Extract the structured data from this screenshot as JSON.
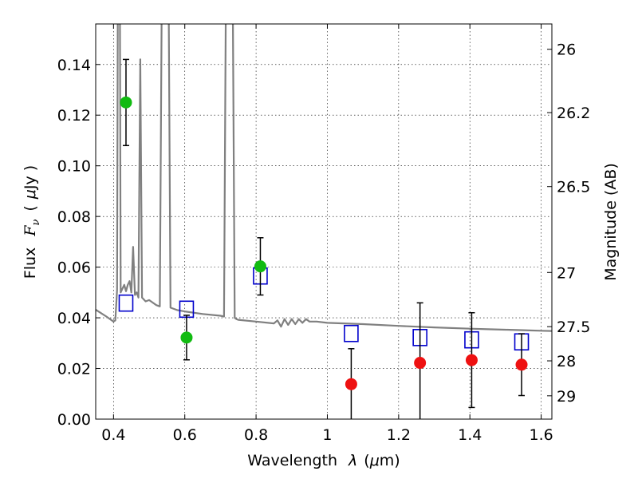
{
  "chart_data": {
    "type": "scatter",
    "xlabel_prefix": "Wavelength",
    "xlabel_lambda": "λ",
    "xlabel_unit_open": "(",
    "xlabel_unit_mu": "μ",
    "xlabel_unit_rest": "m)",
    "ylabel_prefix": "Flux",
    "ylabel_F": "F",
    "ylabel_nu": "ν",
    "ylabel_unit_open": "(",
    "ylabel_unit_mu": "μ",
    "ylabel_unit_rest": "Jy )",
    "y2label": "Magnitude (AB)",
    "xlim": [
      0.35,
      1.63
    ],
    "ylim": [
      0.0,
      0.156
    ],
    "grid": true,
    "x_ticks": [
      0.4,
      0.6,
      0.8,
      1.0,
      1.2,
      1.4,
      1.6
    ],
    "x_tick_labels": [
      "0.4",
      "0.6",
      "0.8",
      "1",
      "1.2",
      "1.4",
      "1.6"
    ],
    "y_ticks": [
      0.0,
      0.02,
      0.04,
      0.06,
      0.08,
      0.1,
      0.12,
      0.14
    ],
    "y_tick_labels": [
      "0.00",
      "0.02",
      "0.04",
      "0.06",
      "0.08",
      "0.10",
      "0.12",
      "0.14"
    ],
    "y2_ticks": [
      {
        "label": "26",
        "flux": 0.146
      },
      {
        "label": "26.2",
        "flux": 0.121
      },
      {
        "label": "26.5",
        "flux": 0.0918
      },
      {
        "label": "27",
        "flux": 0.0579
      },
      {
        "label": "27.5",
        "flux": 0.0365
      },
      {
        "label": "28",
        "flux": 0.023
      },
      {
        "label": "29",
        "flux": 0.0092
      }
    ],
    "series": [
      {
        "name": "model_sed",
        "kind": "line",
        "color": "#808080",
        "x": [
          0.35,
          0.38,
          0.4,
          0.405,
          0.41,
          0.412,
          0.415,
          0.418,
          0.42,
          0.425,
          0.43,
          0.435,
          0.44,
          0.445,
          0.45,
          0.455,
          0.46,
          0.465,
          0.47,
          0.475,
          0.48,
          0.49,
          0.5,
          0.52,
          0.53,
          0.535,
          0.54,
          0.545,
          0.55,
          0.555,
          0.56,
          0.58,
          0.6,
          0.65,
          0.7,
          0.71,
          0.715,
          0.72,
          0.725,
          0.73,
          0.735,
          0.74,
          0.745,
          0.75,
          0.8,
          0.85,
          0.86,
          0.87,
          0.88,
          0.89,
          0.9,
          0.91,
          0.92,
          0.93,
          0.94,
          0.95,
          0.97,
          1.0,
          1.1,
          1.2,
          1.3,
          1.4,
          1.45,
          1.5,
          1.55,
          1.6,
          1.63
        ],
        "y": [
          0.0432,
          0.0405,
          0.0385,
          0.039,
          0.051,
          0.16,
          0.16,
          0.16,
          0.05,
          0.0515,
          0.053,
          0.0505,
          0.053,
          0.0545,
          0.05,
          0.068,
          0.049,
          0.05,
          0.048,
          0.142,
          0.048,
          0.0465,
          0.047,
          0.045,
          0.0445,
          0.16,
          0.16,
          0.16,
          0.16,
          0.16,
          0.044,
          0.043,
          0.0425,
          0.0415,
          0.0408,
          0.0405,
          0.16,
          0.16,
          0.16,
          0.16,
          0.16,
          0.04,
          0.0395,
          0.0392,
          0.0385,
          0.0378,
          0.039,
          0.0365,
          0.0395,
          0.0372,
          0.0395,
          0.0375,
          0.0395,
          0.038,
          0.0395,
          0.0385,
          0.0385,
          0.038,
          0.0375,
          0.0368,
          0.0362,
          0.0357,
          0.0355,
          0.0353,
          0.0351,
          0.0349,
          0.0348
        ]
      },
      {
        "name": "model_band_flux",
        "kind": "square",
        "color": "#0000cc",
        "x": [
          0.435,
          0.605,
          0.812,
          1.067,
          1.26,
          1.405,
          1.545
        ],
        "y": [
          0.0458,
          0.0434,
          0.0565,
          0.0338,
          0.0322,
          0.0313,
          0.0305
        ]
      },
      {
        "name": "detections",
        "kind": "point_err",
        "color": "#11bb11",
        "x": [
          0.435,
          0.605,
          0.812
        ],
        "y": [
          0.125,
          0.0322,
          0.0603
        ],
        "yerr": [
          0.017,
          0.0088,
          0.0113
        ]
      },
      {
        "name": "upper_limits",
        "kind": "point_err",
        "color": "#ee1111",
        "x": [
          1.067,
          1.26,
          1.405,
          1.545
        ],
        "y": [
          0.0138,
          0.0222,
          0.0233,
          0.0215
        ],
        "yerr": [
          0.014,
          0.0237,
          0.0187,
          0.0122
        ]
      }
    ]
  }
}
